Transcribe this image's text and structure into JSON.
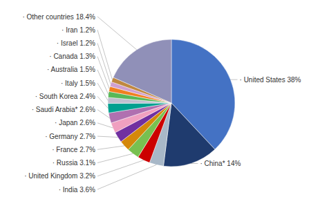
{
  "chart_data": {
    "type": "pie",
    "categories": [
      "United States",
      "China*",
      "India",
      "United Kingdom",
      "Russia",
      "France",
      "Germany",
      "Japan",
      "Saudi Arabia*",
      "South Korea",
      "Italy",
      "Australia",
      "Canada",
      "Israel",
      "Iran",
      "Other countries"
    ],
    "values": [
      38,
      14,
      3.6,
      3.2,
      3.1,
      2.7,
      2.7,
      2.6,
      2.6,
      2.4,
      1.5,
      1.5,
      1.3,
      1.2,
      1.2,
      18.4
    ],
    "value_labels": [
      "· United States 38%",
      "· China* 14%",
      "· India 3.6%",
      "· United Kingdom 3.2%",
      "· Russia 3.1%",
      "· France 2.7%",
      "· Germany 2.7%",
      "· Japan 2.6%",
      "· Saudi Arabia* 2.6%",
      "· South Korea 2.4%",
      "· Italy 1.5%",
      "· Australia 1.5%",
      "· Canada 1.3%",
      "· Israel 1.2%",
      "· Iran 1.2%",
      "· Other countries 18.4%"
    ],
    "colors": [
      "#4472C4",
      "#1F3B6E",
      "#A8B8C8",
      "#CC0000",
      "#78C050",
      "#D4880A",
      "#7030A0",
      "#F0A0C0",
      "#B070B0",
      "#00A090",
      "#C0C0D0",
      "#58B858",
      "#F08020",
      "#D0A0D0",
      "#C08840",
      "#9090B8"
    ],
    "data_labels": true
  }
}
